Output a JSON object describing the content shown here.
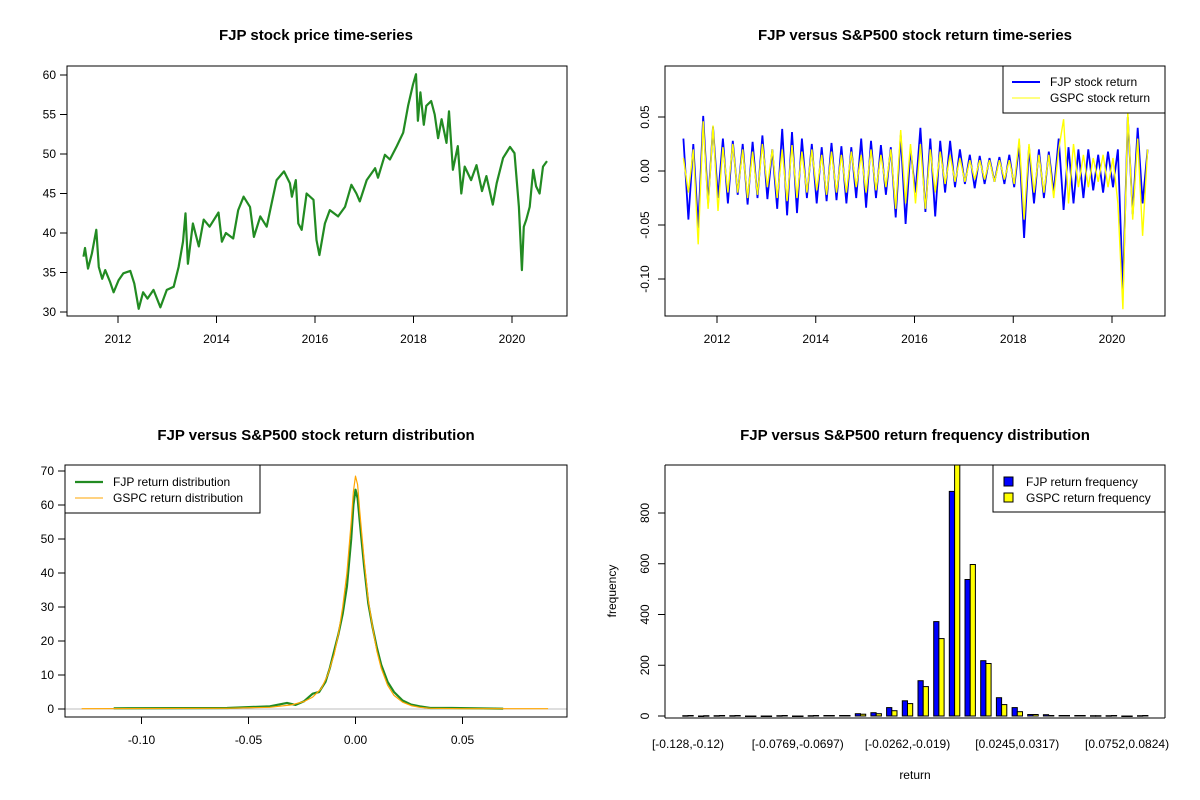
{
  "chart_data": [
    {
      "type": "line",
      "title": "FJP stock price time-series",
      "xlabel": "",
      "ylabel": "",
      "xticks": [
        2012,
        2014,
        2016,
        2018,
        2020
      ],
      "yticks": [
        30,
        35,
        40,
        45,
        50,
        55,
        60
      ],
      "color": "#228B22",
      "x": [
        2011.3,
        2011.33,
        2011.39,
        2011.47,
        2011.56,
        2011.61,
        2011.68,
        2011.74,
        2011.84,
        2011.91,
        2012.01,
        2012.11,
        2012.25,
        2012.33,
        2012.42,
        2012.51,
        2012.6,
        2012.72,
        2012.86,
        2012.99,
        2013.13,
        2013.23,
        2013.32,
        2013.37,
        2013.42,
        2013.52,
        2013.64,
        2013.74,
        2013.86,
        2014.04,
        2014.11,
        2014.19,
        2014.34,
        2014.44,
        2014.55,
        2014.68,
        2014.76,
        2014.89,
        2015.02,
        2015.12,
        2015.22,
        2015.37,
        2015.49,
        2015.53,
        2015.61,
        2015.66,
        2015.73,
        2015.83,
        2015.97,
        2016.03,
        2016.09,
        2016.2,
        2016.3,
        2016.47,
        2016.61,
        2016.74,
        2016.84,
        2016.91,
        2017.05,
        2017.22,
        2017.28,
        2017.42,
        2017.52,
        2017.66,
        2017.79,
        2017.89,
        2017.99,
        2018.05,
        2018.09,
        2018.14,
        2018.21,
        2018.26,
        2018.36,
        2018.43,
        2018.5,
        2018.57,
        2018.67,
        2018.72,
        2018.8,
        2018.9,
        2018.97,
        2019.04,
        2019.17,
        2019.28,
        2019.39,
        2019.48,
        2019.61,
        2019.69,
        2019.82,
        2019.96,
        2020.05,
        2020.14,
        2020.2,
        2020.24,
        2020.29,
        2020.36,
        2020.43,
        2020.49,
        2020.56,
        2020.63,
        2020.71
      ],
      "y": [
        37.0,
        38.1,
        35.5,
        37.4,
        40.4,
        35.7,
        34.2,
        35.3,
        33.8,
        32.5,
        34.0,
        34.9,
        35.2,
        33.6,
        30.4,
        32.5,
        31.7,
        32.8,
        30.6,
        32.8,
        33.2,
        35.7,
        38.9,
        42.5,
        36.1,
        41.2,
        38.3,
        41.7,
        40.8,
        42.6,
        38.9,
        40.0,
        39.3,
        42.9,
        44.6,
        43.3,
        39.5,
        42.1,
        40.8,
        43.8,
        46.7,
        47.8,
        46.3,
        44.6,
        46.7,
        41.2,
        40.4,
        45.0,
        44.2,
        39.1,
        37.2,
        41.2,
        42.9,
        42.1,
        43.3,
        46.1,
        45.0,
        44.0,
        46.7,
        48.2,
        47.0,
        49.9,
        49.3,
        51.0,
        52.7,
        56.1,
        58.8,
        60.1,
        54.2,
        57.8,
        53.7,
        56.1,
        56.7,
        55.0,
        52.0,
        54.4,
        51.4,
        55.4,
        48.0,
        51.0,
        45.0,
        48.4,
        46.7,
        48.6,
        45.3,
        47.2,
        43.6,
        46.3,
        49.5,
        50.9,
        50.1,
        43.3,
        35.3,
        40.8,
        41.7,
        43.3,
        48.0,
        45.9,
        45.0,
        48.4,
        49.1
      ]
    },
    {
      "type": "line",
      "title": "FJP versus S&P500 stock return time-series",
      "xlabel": "",
      "ylabel": "",
      "xticks": [
        2012,
        2014,
        2016,
        2018,
        2020
      ],
      "yticks": [
        -0.1,
        -0.05,
        0.0,
        0.05
      ],
      "ytick_labels": [
        "-0.10",
        "-0.05",
        "0.00",
        "0.05"
      ],
      "x_start": 2011.32,
      "x_step": 0.1,
      "legend": {
        "position": "top-right",
        "entries": [
          "FJP stock return",
          "GSPC stock return"
        ]
      },
      "series": [
        {
          "name": "FJP stock return",
          "color": "#0000FF",
          "values": [
            0.03,
            -0.045,
            0.025,
            -0.053,
            0.051,
            -0.03,
            0.041,
            -0.025,
            0.03,
            -0.03,
            0.028,
            -0.022,
            0.025,
            -0.031,
            0.027,
            -0.025,
            0.033,
            -0.026,
            0.02,
            -0.035,
            0.039,
            -0.041,
            0.036,
            -0.039,
            0.03,
            -0.025,
            0.025,
            -0.03,
            0.022,
            -0.028,
            0.026,
            -0.027,
            0.023,
            -0.03,
            0.022,
            -0.025,
            0.03,
            -0.034,
            0.028,
            -0.025,
            0.024,
            -0.022,
            0.022,
            -0.043,
            0.033,
            -0.049,
            0.02,
            -0.02,
            0.04,
            -0.038,
            0.03,
            -0.042,
            0.028,
            -0.02,
            0.028,
            -0.015,
            0.02,
            -0.012,
            0.015,
            -0.016,
            0.014,
            -0.012,
            0.012,
            -0.01,
            0.013,
            -0.012,
            0.015,
            -0.015,
            0.024,
            -0.062,
            0.022,
            -0.03,
            0.02,
            -0.025,
            0.018,
            -0.02,
            0.03,
            -0.036,
            0.022,
            -0.03,
            0.02,
            -0.025,
            0.02,
            -0.018,
            0.015,
            -0.02,
            0.018,
            -0.015,
            0.02,
            -0.11,
            0.05,
            -0.04,
            0.04,
            -0.03,
            0.02
          ]
        },
        {
          "name": "GSPC stock return",
          "color": "#FFFF00",
          "values": [
            0.012,
            -0.02,
            0.02,
            -0.068,
            0.046,
            -0.035,
            0.042,
            -0.037,
            0.022,
            -0.02,
            0.025,
            -0.02,
            0.02,
            -0.025,
            0.018,
            -0.022,
            0.025,
            -0.015,
            0.02,
            -0.025,
            0.02,
            -0.028,
            0.024,
            -0.025,
            0.018,
            -0.02,
            0.02,
            -0.018,
            0.015,
            -0.022,
            0.018,
            -0.02,
            0.015,
            -0.02,
            0.018,
            -0.015,
            0.015,
            -0.02,
            0.02,
            -0.018,
            0.015,
            -0.015,
            0.02,
            -0.035,
            0.038,
            -0.03,
            0.025,
            -0.03,
            0.025,
            -0.035,
            0.02,
            -0.02,
            0.018,
            -0.012,
            0.015,
            -0.01,
            0.012,
            -0.01,
            0.01,
            -0.008,
            0.01,
            -0.008,
            0.01,
            -0.01,
            0.01,
            -0.008,
            0.01,
            -0.012,
            0.03,
            -0.045,
            0.025,
            -0.02,
            0.015,
            -0.02,
            0.015,
            -0.025,
            0.02,
            0.048,
            -0.03,
            0.025,
            -0.015,
            0.015,
            -0.015,
            0.012,
            -0.01,
            0.015,
            -0.015,
            0.012,
            -0.03,
            -0.128,
            0.055,
            -0.045,
            0.03,
            -0.06,
            0.02
          ]
        }
      ]
    },
    {
      "type": "line",
      "title": "FJP versus S&P500 stock return distribution",
      "xlabel": "",
      "ylabel": "",
      "xticks": [
        -0.1,
        -0.05,
        0.0,
        0.05
      ],
      "xtick_labels": [
        "-0.10",
        "-0.05",
        "0.00",
        "0.05"
      ],
      "yticks": [
        0,
        10,
        20,
        30,
        40,
        50,
        60,
        70
      ],
      "legend": {
        "position": "top-left",
        "entries": [
          "FJP return distribution",
          "GSPC return distribution"
        ]
      },
      "series": [
        {
          "name": "FJP return distribution",
          "color": "#228B22",
          "x": [
            -0.113,
            -0.06,
            -0.04,
            -0.032,
            -0.028,
            -0.024,
            -0.02,
            -0.017,
            -0.014,
            -0.012,
            -0.01,
            -0.008,
            -0.006,
            -0.004,
            -0.002,
            -0.001,
            0,
            0.001,
            0.002,
            0.004,
            0.006,
            0.008,
            0.01,
            0.012,
            0.015,
            0.018,
            0.022,
            0.026,
            0.03,
            0.035,
            0.045,
            0.069
          ],
          "y": [
            0.2,
            0.3,
            0.8,
            1.8,
            1.2,
            2.3,
            4.5,
            5,
            8,
            12,
            17,
            22,
            28,
            36,
            50,
            60,
            64.5,
            62,
            55,
            42,
            31,
            24,
            18,
            13,
            8,
            5,
            2.5,
            1.3,
            0.8,
            0.3,
            0.3,
            0.1
          ]
        },
        {
          "name": "GSPC return distribution",
          "color": "#FFA500",
          "x": [
            -0.128,
            -0.06,
            -0.04,
            -0.03,
            -0.024,
            -0.02,
            -0.016,
            -0.013,
            -0.01,
            -0.008,
            -0.006,
            -0.004,
            -0.002,
            -0.001,
            0,
            0.001,
            0.002,
            0.004,
            0.006,
            0.008,
            0.01,
            0.012,
            0.015,
            0.018,
            0.022,
            0.026,
            0.03,
            0.035,
            0.05,
            0.09
          ],
          "y": [
            0.1,
            0.2,
            0.5,
            1.2,
            2.2,
            3.5,
            6,
            10,
            16,
            22,
            30,
            40,
            55,
            64,
            68.5,
            66,
            58,
            44,
            32,
            24,
            17,
            12,
            7,
            4,
            2,
            1,
            0.5,
            0.2,
            0.1,
            0.1
          ]
        }
      ],
      "reference_line": {
        "y": 0,
        "color": "#BEBEBE"
      }
    },
    {
      "type": "bar",
      "title": "FJP versus S&P500 return frequency distribution",
      "xlabel": "return",
      "ylabel": "frequency",
      "yticks": [
        0,
        200,
        400,
        600,
        800
      ],
      "visible_category_labels": [
        {
          "bin": 0,
          "label": "[-0.128,-0.12)"
        },
        {
          "bin": 7,
          "label": "[-0.0769,-0.0697)"
        },
        {
          "bin": 14,
          "label": "[-0.0262,-0.019)"
        },
        {
          "bin": 21,
          "label": "[0.0245,0.0317)"
        },
        {
          "bin": 28,
          "label": "[0.0752,0.0824)"
        }
      ],
      "bin_count": 30,
      "legend": {
        "position": "top-right",
        "entries": [
          "FJP return frequency",
          "GSPC return frequency"
        ]
      },
      "series": [
        {
          "name": "FJP return frequency",
          "color": "#0000FF",
          "values": [
            1,
            0,
            1,
            1,
            0,
            0,
            1,
            0,
            1,
            2,
            2,
            9,
            13,
            33,
            60,
            139,
            372,
            885,
            538,
            218,
            72,
            33,
            6,
            5,
            2,
            2,
            1,
            1,
            0,
            1
          ]
        },
        {
          "name": "GSPC return frequency",
          "color": "#FFFF00",
          "values": [
            2,
            1,
            2,
            2,
            0,
            0,
            2,
            0,
            2,
            2,
            2,
            7,
            9,
            21,
            49,
            116,
            305,
            1010,
            597,
            207,
            45,
            17,
            6,
            2,
            2,
            2,
            1,
            2,
            0,
            2
          ]
        }
      ]
    }
  ]
}
